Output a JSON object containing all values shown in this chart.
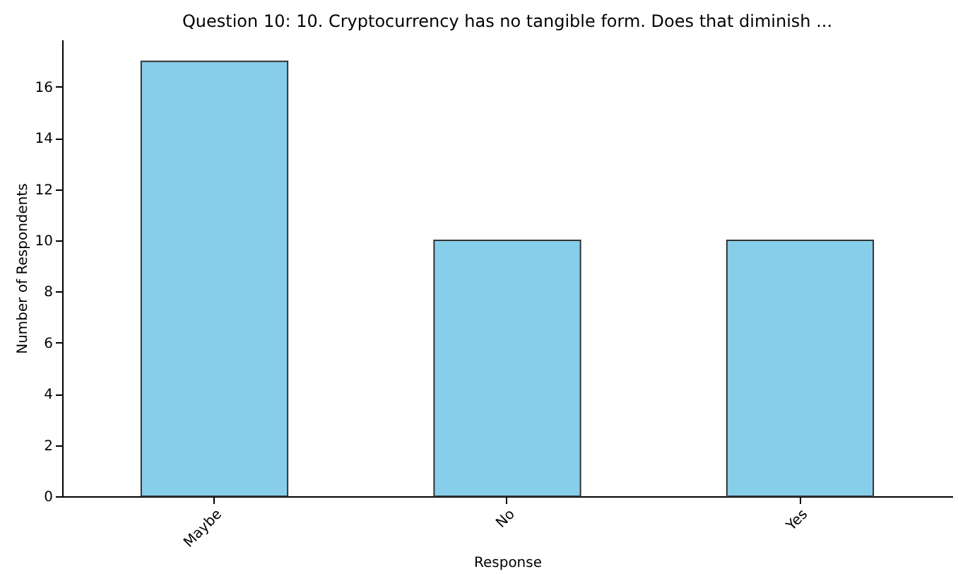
{
  "chart_data": {
    "type": "bar",
    "title": "Question 10: 10. Cryptocurrency has no tangible form. Does that diminish ...",
    "xlabel": "Response",
    "ylabel": "Number of Respondents",
    "categories": [
      "Maybe",
      "No",
      "Yes"
    ],
    "values": [
      17,
      10,
      10
    ],
    "color": "#87ceeb",
    "ylim": [
      0,
      17.85
    ],
    "yticks": [
      0,
      2,
      4,
      6,
      8,
      10,
      12,
      14,
      16
    ],
    "grid": false,
    "legend": false
  }
}
